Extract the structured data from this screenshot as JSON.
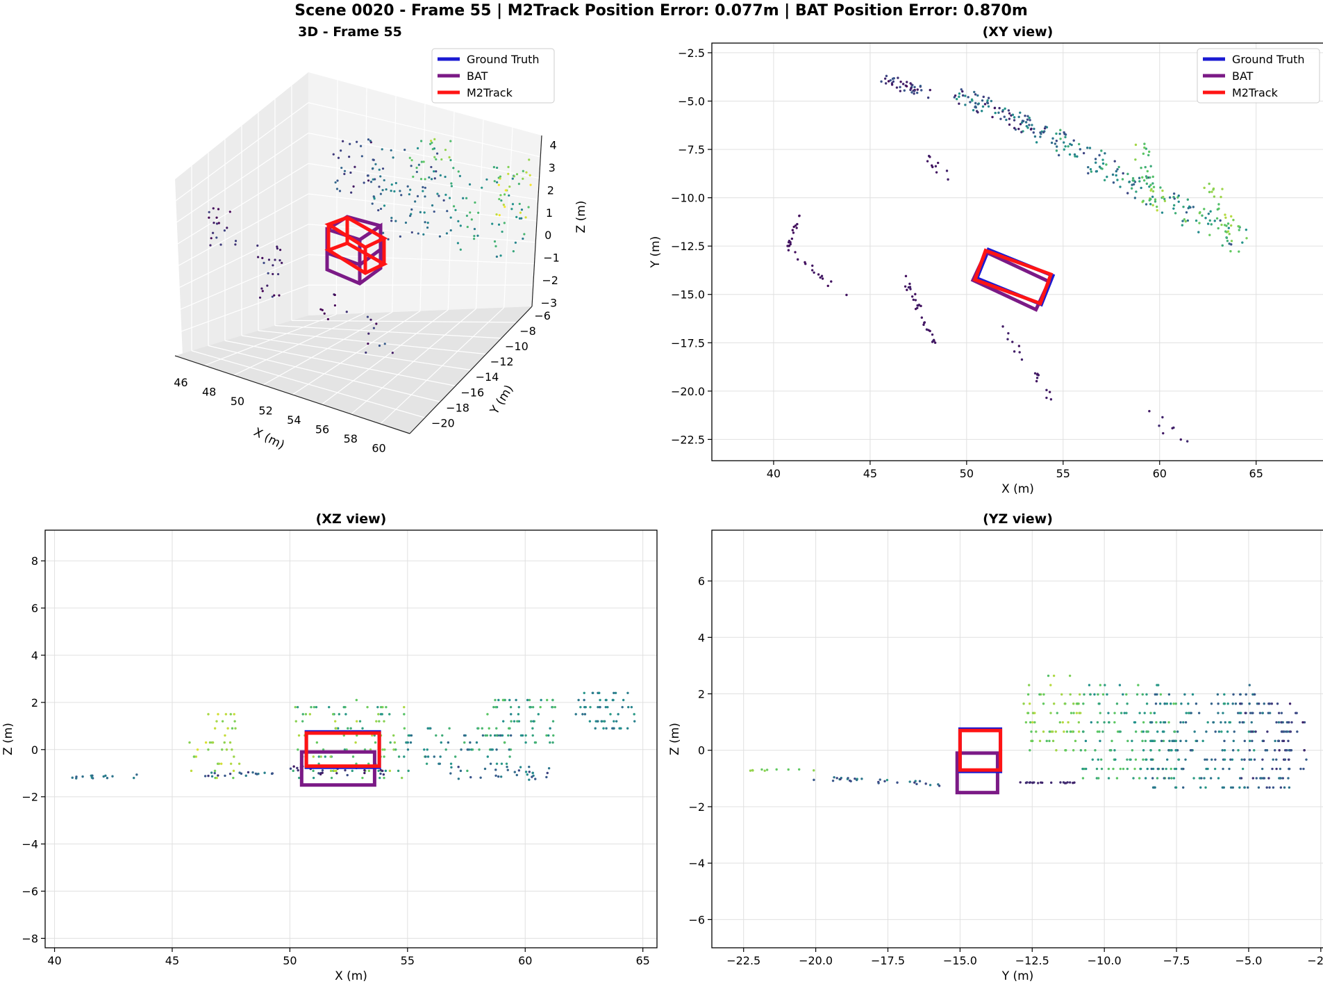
{
  "figure_title": "Scene 0020 - Frame 55 | M2Track Position Error: 0.077m | BAT Position Error: 0.870m",
  "colors": {
    "ground_truth": "#1a1ad2",
    "bat": "#7b1a86",
    "m2track": "#ff1414",
    "grid": "#e0e0e0",
    "pane": "#f2f2f2"
  },
  "legend": [
    {
      "label": "Ground Truth",
      "color": "#1a1ad2"
    },
    {
      "label": "BAT",
      "color": "#7b1a86"
    },
    {
      "label": "M2Track",
      "color": "#ff1414"
    }
  ],
  "chart_data": [
    {
      "type": "scatter3d",
      "title": "3D - Frame 55",
      "xlabel": "X (m)",
      "ylabel": "Y (m)",
      "zlabel": "Z (m)",
      "xticks": [
        "46",
        "48",
        "50",
        "52",
        "54",
        "56",
        "58",
        "60"
      ],
      "yticks": [
        "−6",
        "−8",
        "−10",
        "−12",
        "−14",
        "−16",
        "−18",
        "−20"
      ],
      "zticks": [
        "4",
        "3",
        "2",
        "1",
        "0",
        "−1",
        "−2",
        "−3"
      ],
      "xlim": [
        45,
        61
      ],
      "ylim": [
        -21,
        -5
      ],
      "zlim": [
        -3.5,
        4
      ]
    },
    {
      "type": "scatter",
      "title": "(XY view)",
      "xlabel": "X (m)",
      "ylabel": "Y (m)",
      "xlim": [
        36.8,
        68.5
      ],
      "ylim": [
        -23.6,
        -2.0
      ],
      "xticks": [
        "40",
        "45",
        "50",
        "55",
        "60",
        "65"
      ],
      "yticks": [
        "−2.5",
        "−5.0",
        "−7.5",
        "−10.0",
        "−12.5",
        "−15.0",
        "−17.5",
        "−20.0",
        "−22.5"
      ],
      "boxes": [
        {
          "name": "Ground Truth",
          "center": [
            52.5,
            -14.1
          ],
          "size": [
            3.6,
            1.6
          ],
          "yaw_deg": -22
        },
        {
          "name": "BAT",
          "center": [
            52.3,
            -14.3
          ],
          "size": [
            3.6,
            1.6
          ],
          "yaw_deg": -25
        },
        {
          "name": "M2Track",
          "center": [
            52.4,
            -14.1
          ],
          "size": [
            3.6,
            1.6
          ],
          "yaw_deg": -20
        }
      ]
    },
    {
      "type": "scatter",
      "title": "(XZ view)",
      "xlabel": "X (m)",
      "ylabel": "Z (m)",
      "xlim": [
        39.6,
        65.6
      ],
      "ylim": [
        -8.4,
        9.3
      ],
      "xticks": [
        "40",
        "45",
        "50",
        "55",
        "60",
        "65"
      ],
      "yticks": [
        "8",
        "6",
        "4",
        "2",
        "0",
        "−2",
        "−4",
        "−6",
        "−8"
      ],
      "boxes": [
        {
          "name": "BAT",
          "xmin": 50.5,
          "xmax": 53.6,
          "zmin": -1.5,
          "zmax": -0.1
        },
        {
          "name": "Ground Truth",
          "xmin": 50.7,
          "xmax": 53.8,
          "zmin": -0.75,
          "zmax": 0.75
        },
        {
          "name": "M2Track",
          "xmin": 50.7,
          "xmax": 53.8,
          "zmin": -0.7,
          "zmax": 0.7
        }
      ]
    },
    {
      "type": "scatter",
      "title": "(YZ view)",
      "xlabel": "Y (m)",
      "ylabel": "Z (m)",
      "xlim": [
        -23.6,
        -2.4
      ],
      "ylim": [
        -7.0,
        7.8
      ],
      "xticks": [
        "−22.5",
        "−20.0",
        "−17.5",
        "−15.0",
        "−12.5",
        "−10.0",
        "−7.5",
        "−5.0",
        "−2.5"
      ],
      "yticks": [
        "6",
        "4",
        "2",
        "0",
        "−2",
        "−4",
        "−6"
      ],
      "boxes": [
        {
          "name": "BAT",
          "ymin": -15.1,
          "ymax": -13.7,
          "zmin": -1.5,
          "zmax": -0.1
        },
        {
          "name": "Ground Truth",
          "ymin": -15.0,
          "ymax": -13.6,
          "zmin": -0.75,
          "zmax": 0.75
        },
        {
          "name": "M2Track",
          "ymin": -15.0,
          "ymax": -13.6,
          "zmin": -0.7,
          "zmax": 0.7
        }
      ]
    }
  ]
}
